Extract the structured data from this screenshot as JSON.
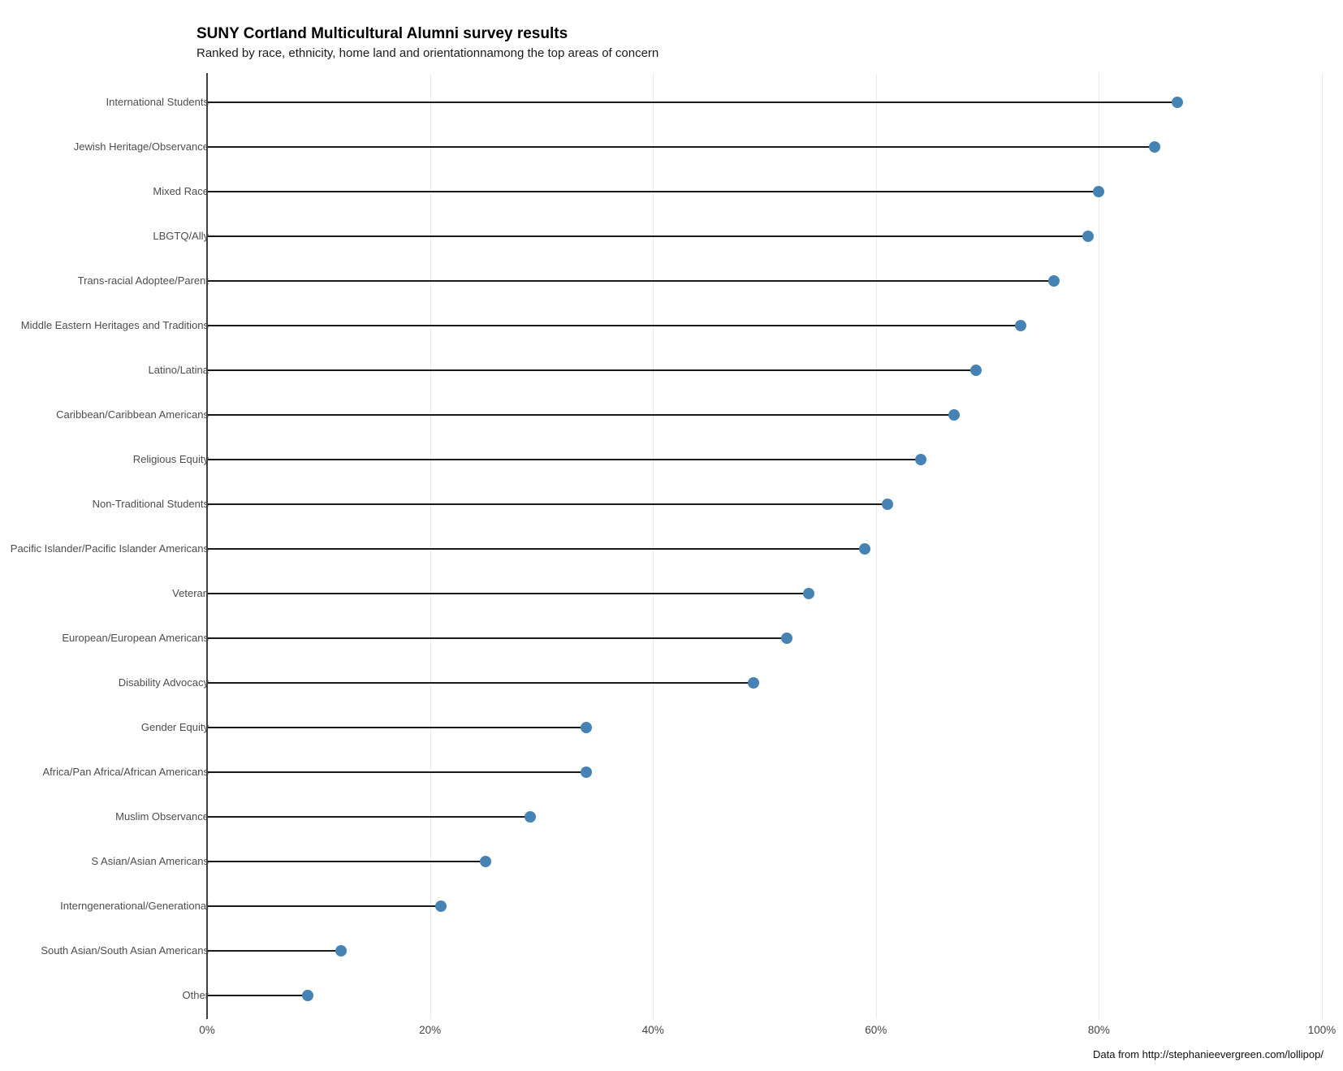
{
  "header": {
    "title": "SUNY Cortland Multicultural Alumni survey results",
    "subtitle": "Ranked by race, ethnicity, home land and orientationnamong the top areas of concern"
  },
  "footer": {
    "source": "Data from http://stephanieevergreen.com/lollipop/"
  },
  "colors": {
    "dot": "#4682B4",
    "stem": "#1a1a1a",
    "axis": "#3f3f3f",
    "gridline": "#ebebeb",
    "label_text": "#4d4d4d"
  },
  "chart_data": {
    "type": "bar",
    "variant": "lollipop-horizontal",
    "title": "SUNY Cortland Multicultural Alumni survey results",
    "subtitle": "Ranked by race, ethnicity, home land and orientationnamong the top areas of concern",
    "xlabel": "",
    "ylabel": "",
    "unit": "%",
    "xlim": [
      0,
      100
    ],
    "x_ticks": [
      {
        "value": 0,
        "label": "0%"
      },
      {
        "value": 20,
        "label": "20%"
      },
      {
        "value": 40,
        "label": "40%"
      },
      {
        "value": 60,
        "label": "60%"
      },
      {
        "value": 80,
        "label": "80%"
      },
      {
        "value": 100,
        "label": "100%"
      }
    ],
    "grid": "vertical-light",
    "legend": "none",
    "categories": [
      "International Students",
      "Jewish Heritage/Observance",
      "Mixed Race",
      "LBGTQ/Ally",
      "Trans-racial Adoptee/Parent",
      "Middle Eastern Heritages and Traditions",
      "Latino/Latina",
      "Caribbean/Caribbean Americans",
      "Religious Equity",
      "Non-Traditional Students",
      "Pacific Islander/Pacific Islander Americans",
      "Veteran",
      "European/European Americans",
      "Disability Advocacy",
      "Gender Equity",
      "Africa/Pan Africa/African Americans",
      "Muslim Observance",
      "S Asian/Asian Americans",
      "Interngenerational/Generational",
      "South Asian/South Asian Americans",
      "Other"
    ],
    "values": [
      87,
      85,
      80,
      79,
      76,
      73,
      69,
      67,
      64,
      61,
      59,
      54,
      52,
      49,
      34,
      34,
      29,
      25,
      21,
      12,
      9
    ]
  }
}
